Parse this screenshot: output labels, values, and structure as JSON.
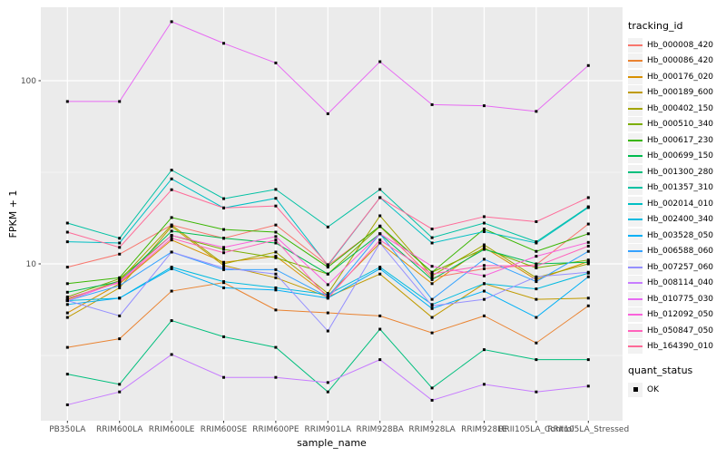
{
  "chart_data": {
    "type": "line",
    "title": "",
    "xlabel": "sample_name",
    "ylabel": "FPKM + 1",
    "yscale": "log10",
    "ylim": [
      1.4,
      250
    ],
    "grid": true,
    "y_major_ticks": [
      10,
      100
    ],
    "y_minor_gridlines": [
      3.162,
      31.62
    ],
    "point": {
      "shape": "filled-square",
      "color": "#000000"
    },
    "colors": {
      "panel_bg": "#EBEBEB",
      "grid": "#FFFFFF",
      "tick_text": "#4D4D4D",
      "tick_mark": "#333333",
      "legend_key_bg": "#F2F2F2"
    },
    "categories": [
      "PB350LA",
      "RRIM600LA",
      "RRIM600LE",
      "RRIM600SE",
      "RRIM600PE",
      "RRIM901LA",
      "RRIM928BA",
      "RRIM928LA",
      "RRIM928LE",
      "RRII105LA_Control",
      "RRII105LA_Stressed"
    ],
    "series": [
      {
        "name": "Hb_000008_420",
        "color": "#F8766D",
        "values": [
          9.6,
          11.3,
          16.3,
          13.8,
          16.3,
          9.8,
          16.0,
          8.4,
          9.4,
          9.9,
          16.5
        ]
      },
      {
        "name": "Hb_000086_420",
        "color": "#EA8331",
        "values": [
          3.5,
          3.9,
          7.1,
          7.9,
          5.6,
          5.4,
          5.2,
          4.2,
          5.2,
          3.7,
          5.9
        ]
      },
      {
        "name": "Hb_000176_020",
        "color": "#D89000",
        "values": [
          5.4,
          7.8,
          13.5,
          10.2,
          11.0,
          6.7,
          13.0,
          7.8,
          12.3,
          8.2,
          10.3
        ]
      },
      {
        "name": "Hb_000189_600",
        "color": "#C09B00",
        "values": [
          5.1,
          7.4,
          16.0,
          9.8,
          8.4,
          6.6,
          8.8,
          5.1,
          7.8,
          6.4,
          6.5
        ]
      },
      {
        "name": "Hb_000402_150",
        "color": "#A3A500",
        "values": [
          6.4,
          8.1,
          16.3,
          10.0,
          11.6,
          6.9,
          18.3,
          8.6,
          12.7,
          8.4,
          10.0
        ]
      },
      {
        "name": "Hb_000510_340",
        "color": "#7CAE00",
        "values": [
          6.6,
          8.3,
          14.3,
          12.0,
          10.8,
          8.8,
          16.0,
          9.0,
          12.1,
          9.5,
          10.5
        ]
      },
      {
        "name": "Hb_000617_230",
        "color": "#39B600",
        "values": [
          7.8,
          8.4,
          17.9,
          15.4,
          14.9,
          9.6,
          16.1,
          9.0,
          15.5,
          11.7,
          14.6
        ]
      },
      {
        "name": "Hb_000699_150",
        "color": "#00BB4E",
        "values": [
          7.0,
          8.0,
          15.1,
          13.8,
          13.0,
          8.8,
          14.6,
          8.2,
          12.0,
          10.0,
          10.2
        ]
      },
      {
        "name": "Hb_001300_280",
        "color": "#00BF7D",
        "values": [
          2.5,
          2.2,
          4.9,
          4.0,
          3.5,
          2.0,
          4.4,
          2.1,
          3.4,
          3.0,
          3.0
        ]
      },
      {
        "name": "Hb_001357_310",
        "color": "#00C1A3",
        "values": [
          16.7,
          13.8,
          32.5,
          22.7,
          25.5,
          15.9,
          25.5,
          13.9,
          16.7,
          13.2,
          20.5
        ]
      },
      {
        "name": "Hb_002014_010",
        "color": "#00BFC4",
        "values": [
          13.2,
          13.0,
          29.1,
          20.2,
          22.8,
          9.8,
          23.0,
          13.0,
          15.0,
          13.0,
          20.3
        ]
      },
      {
        "name": "Hb_002400_340",
        "color": "#00BAE0",
        "values": [
          6.3,
          6.5,
          9.6,
          8.0,
          7.4,
          6.8,
          9.6,
          6.0,
          7.8,
          7.3,
          8.9
        ]
      },
      {
        "name": "Hb_003528_050",
        "color": "#00B0F6",
        "values": [
          6.0,
          6.5,
          9.4,
          7.4,
          7.2,
          6.5,
          9.4,
          5.7,
          7.1,
          5.1,
          8.5
        ]
      },
      {
        "name": "Hb_006588_060",
        "color": "#35A2FF",
        "values": [
          6.3,
          7.6,
          11.6,
          9.3,
          9.3,
          6.6,
          14.6,
          6.4,
          10.6,
          8.0,
          11.7
        ]
      },
      {
        "name": "Hb_007257_060",
        "color": "#9590FF",
        "values": [
          6.3,
          5.2,
          11.6,
          9.5,
          8.8,
          4.3,
          13.0,
          5.9,
          6.4,
          8.5,
          9.0
        ]
      },
      {
        "name": "Hb_008114_040",
        "color": "#C77CFF",
        "values": [
          1.7,
          2.0,
          3.2,
          2.4,
          2.4,
          2.25,
          3.0,
          1.8,
          2.2,
          2.0,
          2.15
        ]
      },
      {
        "name": "Hb_010775_030",
        "color": "#E76BF3",
        "values": [
          77,
          77,
          210,
          160,
          125,
          66,
          127,
          74,
          73,
          68,
          121
        ]
      },
      {
        "name": "Hb_012092_050",
        "color": "#FA62DB",
        "values": [
          6.3,
          8.0,
          14.3,
          12.3,
          14.1,
          7.7,
          14.6,
          9.7,
          8.6,
          11.0,
          13.1
        ]
      },
      {
        "name": "Hb_050847_050",
        "color": "#FF62BC",
        "values": [
          6.5,
          7.9,
          13.8,
          11.5,
          13.5,
          6.5,
          13.5,
          8.8,
          9.8,
          9.7,
          12.5
        ]
      },
      {
        "name": "Hb_164390_010",
        "color": "#FF6A98",
        "values": [
          14.9,
          12.3,
          25.4,
          20.2,
          20.7,
          9.9,
          23.0,
          15.5,
          18.1,
          17.0,
          23.0
        ]
      }
    ],
    "legend": {
      "series_title": "tracking_id",
      "quant_title": "quant_status",
      "quant_items": [
        {
          "label": "OK",
          "shape": "filled-square",
          "color": "#000000"
        }
      ],
      "position": "right"
    }
  }
}
